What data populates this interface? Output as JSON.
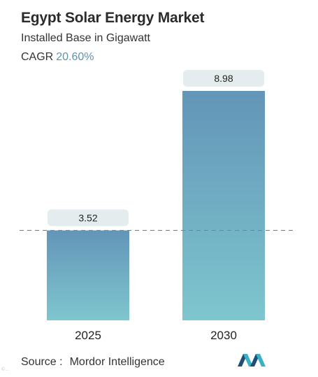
{
  "header": {
    "title": "Egypt Solar Energy Market",
    "subtitle": "Installed Base in Gigawatt",
    "cagr_label": "CAGR",
    "cagr_value": "20.60%"
  },
  "footer": {
    "source_label": "Source :",
    "source_name": "Mordor Intelligence",
    "logo_icon": "mordor-intelligence-logo-icon",
    "watermark": "©…"
  },
  "colors": {
    "bar_top": "#6395b8",
    "bar_bottom": "#7ec6ce",
    "label_box": "#e4ecee",
    "dashed_line": "#5b8da5",
    "cagr_accent": "#5f93b4",
    "logo_dark": "#1f4e79",
    "logo_teal": "#3bb1c3"
  },
  "chart_data": {
    "type": "bar",
    "categories": [
      "2025",
      "2030"
    ],
    "values": [
      3.52,
      8.98
    ],
    "value_labels": [
      "3.52",
      "8.98"
    ],
    "title": "Egypt Solar Energy Market",
    "subtitle": "Installed Base in Gigawatt",
    "ylim": [
      0,
      8.98
    ],
    "grid": false,
    "reference_line_at": 3.52
  }
}
